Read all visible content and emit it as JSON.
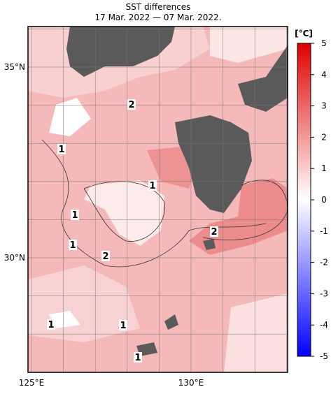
{
  "map": {
    "title": "SST differences",
    "subtitle": "17 Mar. 2022 — 07 Mar. 2022.",
    "lat_labels": [
      "35°N",
      "30°N"
    ],
    "lon_labels": [
      "125°E",
      "130°E"
    ],
    "contour_labels": [
      "2",
      "1",
      "1",
      "1",
      "1",
      "2",
      "2",
      "1",
      "1",
      "1"
    ]
  },
  "colorbar": {
    "unit": "[°C]",
    "lim": [
      -5,
      5
    ],
    "ticks": [
      -5,
      -4,
      -3,
      -2,
      -1,
      0,
      1,
      2,
      3,
      4,
      5
    ]
  }
}
